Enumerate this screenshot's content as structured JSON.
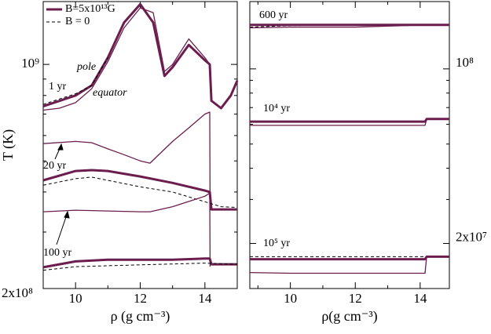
{
  "chart_data": [
    {
      "type": "line",
      "log_y": true,
      "y_side": "left",
      "ylabel": "T (K)",
      "xlabel": "ρ (g cm⁻³)",
      "xlim": [
        9,
        15
      ],
      "xticks": [
        10,
        12,
        14
      ],
      "minor_xticks": [
        11,
        13
      ],
      "ylim": [
        200000000,
        1570000000
      ],
      "yticks": [
        {
          "value": 200000000,
          "label": "2x10⁸"
        },
        {
          "value": 1000000000,
          "label": "10⁹"
        }
      ],
      "minor_yticks": [
        300000000,
        400000000,
        500000000,
        600000000,
        700000000,
        800000000,
        900000000
      ],
      "annotations": [
        "pole",
        "equator",
        "1 yr",
        "20 yr",
        "100 yr"
      ],
      "series": [
        {
          "name": "B=5x10¹³G",
          "color": "#6b1e4e",
          "width": 3,
          "dash": false,
          "x": [
            9,
            10,
            10.5,
            11,
            11.5,
            12,
            12.4,
            12.75,
            13,
            13.5,
            14,
            14.15,
            14.2,
            14.5,
            14.8,
            15
          ],
          "values": [
            740000000,
            800000000,
            860000000,
            1050000000,
            1350000000,
            1540000000,
            1350000000,
            920000000,
            980000000,
            1150000000,
            1030000000,
            1000000000,
            770000000,
            730000000,
            800000000,
            890000000
          ]
        },
        {
          "name": "B = 0",
          "color": "#000000",
          "width": 1,
          "dash": true,
          "x": [
            9,
            9.5,
            10,
            10.5,
            11
          ],
          "values": [
            750000000,
            780000000,
            810000000,
            860000000,
            1050000000
          ]
        },
        {
          "color": "#6b1e4e",
          "width": 1.3,
          "dash": false,
          "x": [
            9,
            9.5,
            10,
            10.5,
            11,
            11.5,
            12,
            12.4,
            12.75,
            13,
            13.5,
            14,
            14.15
          ],
          "values": [
            720000000,
            730000000,
            760000000,
            840000000,
            1020000000,
            1300000000,
            1500000000,
            1450000000,
            950000000,
            1000000000,
            1200000000,
            1050000000,
            1000000000
          ]
        },
        {
          "color": "#6b1e4e",
          "width": 1.3,
          "dash": false,
          "x": [
            9,
            10,
            10.5,
            11,
            11.5,
            12,
            12.3,
            13,
            13.5,
            14,
            14.15,
            14.16
          ],
          "values": [
            566000000,
            575000000,
            570000000,
            545000000,
            523000000,
            500000000,
            492000000,
            575000000,
            634000000,
            700000000,
            710000000,
            351000000
          ]
        },
        {
          "color": "#6b1e4e",
          "width": 3,
          "dash": false,
          "x": [
            9,
            10,
            10.5,
            11,
            12,
            13,
            14,
            14.15,
            14.2,
            15
          ],
          "values": [
            435000000,
            465000000,
            468000000,
            465000000,
            447000000,
            427000000,
            404000000,
            400000000,
            353000000,
            353000000
          ]
        },
        {
          "color": "#000000",
          "width": 1,
          "dash": true,
          "x": [
            9,
            10,
            10.5,
            11,
            12,
            13,
            14,
            14.5,
            15
          ],
          "values": [
            420000000,
            440000000,
            445000000,
            435000000,
            415000000,
            400000000,
            373000000,
            360000000,
            358000000
          ]
        },
        {
          "color": "#6b1e4e",
          "width": 1.3,
          "dash": false,
          "x": [
            9,
            10,
            12,
            12.3,
            13,
            14,
            14.15,
            14.16
          ],
          "values": [
            347000000,
            351000000,
            347000000,
            347000000,
            360000000,
            388000000,
            397000000,
            234000000
          ]
        },
        {
          "color": "#6b1e4e",
          "width": 3,
          "dash": false,
          "x": [
            9,
            10,
            11,
            12,
            13,
            14,
            14.15,
            14.2,
            15
          ],
          "values": [
            233000000,
            243000000,
            246000000,
            246000000,
            246000000,
            248000000,
            248000000,
            238000000,
            238000000
          ]
        },
        {
          "color": "#000000",
          "width": 1,
          "dash": true,
          "x": [
            9,
            10,
            12,
            14,
            15
          ],
          "values": [
            228000000,
            234000000,
            237000000,
            240000000,
            238000000
          ]
        }
      ]
    },
    {
      "type": "line",
      "log_y": true,
      "y_side": "right",
      "xlabel": "ρ(g cm⁻³)",
      "xlim": [
        8.75,
        14.9
      ],
      "xticks": [
        10,
        12,
        14
      ],
      "minor_xticks": [
        9,
        11,
        13
      ],
      "ylim": [
        13200000,
        186000000
      ],
      "yticks": [
        {
          "value": 20000000,
          "label": "2x10⁷"
        },
        {
          "value": 100000000,
          "label": "10⁸"
        }
      ],
      "minor_yticks": [
        30000000,
        40000000,
        50000000,
        60000000,
        70000000,
        80000000,
        90000000
      ],
      "annotations": [
        "600 yr",
        "10⁴ yr",
        "10⁵ yr"
      ],
      "series": [
        {
          "color": "#6b1e4e",
          "width": 1.3,
          "dash": false,
          "x": [
            8.75,
            10,
            12,
            14.15,
            14.9
          ],
          "values": [
            146000000,
            147000000,
            147000000,
            150000000,
            150000000
          ]
        },
        {
          "color": "#000000",
          "width": 1,
          "dash": true,
          "x": [
            8.75,
            10,
            12,
            14.9
          ],
          "values": [
            147000000,
            149000000,
            150000000,
            150000000
          ]
        },
        {
          "color": "#6b1e4e",
          "width": 3,
          "dash": false,
          "x": [
            8.75,
            10,
            12,
            14.9
          ],
          "values": [
            150000000,
            150000000,
            150000000,
            150000000
          ]
        },
        {
          "color": "#6b1e4e",
          "width": 1.3,
          "dash": false,
          "x": [
            8.75,
            10,
            12,
            14.15,
            14.2,
            14.9
          ],
          "values": [
            59400000,
            59400000,
            59400000,
            59400000,
            63000000,
            63000000
          ]
        },
        {
          "color": "#6b1e4e",
          "width": 3,
          "dash": false,
          "x": [
            8.75,
            10,
            12,
            14.15,
            14.2,
            14.9
          ],
          "values": [
            61500000,
            61500000,
            61500000,
            61500000,
            63000000,
            63000000
          ]
        },
        {
          "color": "#000000",
          "width": 1,
          "dash": true,
          "x": [
            8.75,
            10,
            12,
            14.15
          ],
          "values": [
            17700000,
            17700000,
            17700000,
            17700000
          ]
        },
        {
          "color": "#6b1e4e",
          "width": 3,
          "dash": false,
          "x": [
            8.75,
            10,
            12,
            14.15,
            14.2,
            14.9
          ],
          "values": [
            17300000,
            17300000,
            17300000,
            17300000,
            17700000,
            17700000
          ]
        },
        {
          "color": "#6b1e4e",
          "width": 1.3,
          "dash": false,
          "x": [
            8.75,
            10,
            12,
            14.15,
            14.2,
            14.9
          ],
          "values": [
            15300000,
            15200000,
            15200000,
            15200000,
            17700000,
            17700000
          ]
        }
      ]
    }
  ]
}
